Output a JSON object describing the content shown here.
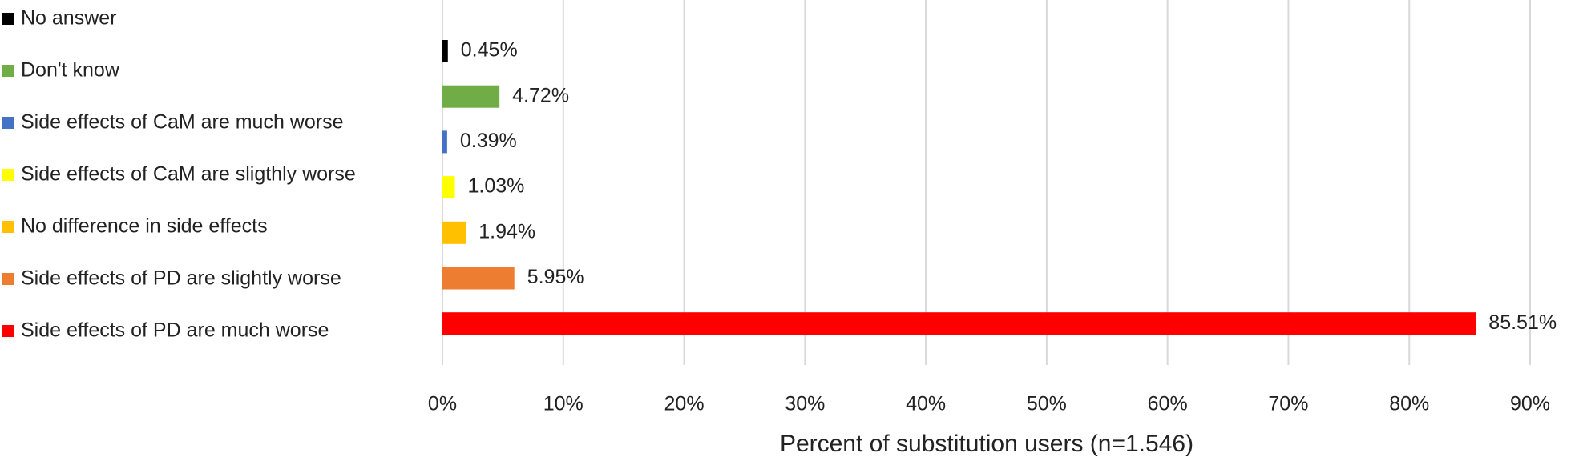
{
  "chart_data": {
    "type": "bar",
    "orientation": "horizontal",
    "x_label": "Percent of substitution users (n=1.546)",
    "categories": [
      "No answer",
      "Don't know",
      "Side effects of CaM are much worse",
      "Side effects of CaM are sligthly worse",
      "No difference in side effects",
      "Side effects of PD are slightly worse",
      "Side effects of PD are much worse"
    ],
    "values": [
      0.45,
      4.72,
      0.39,
      1.03,
      1.94,
      5.95,
      85.51
    ],
    "value_labels": [
      "0.45%",
      "4.72%",
      "0.39%",
      "1.03%",
      "1.94%",
      "5.95%",
      "85.51%"
    ],
    "colors": [
      "#000000",
      "#70ad47",
      "#4472c4",
      "#ffff00",
      "#ffc000",
      "#ed7d31",
      "#ff0000"
    ],
    "xlim": [
      0,
      90
    ],
    "xticks": [
      {
        "value": 0,
        "label": "0%"
      },
      {
        "value": 10,
        "label": "10%"
      },
      {
        "value": 20,
        "label": "20%"
      },
      {
        "value": 30,
        "label": "30%"
      },
      {
        "value": 40,
        "label": "40%"
      },
      {
        "value": 50,
        "label": "50%"
      },
      {
        "value": 60,
        "label": "60%"
      },
      {
        "value": 70,
        "label": "70%"
      },
      {
        "value": 80,
        "label": "80%"
      },
      {
        "value": 90,
        "label": "90%"
      }
    ],
    "grid": true
  }
}
